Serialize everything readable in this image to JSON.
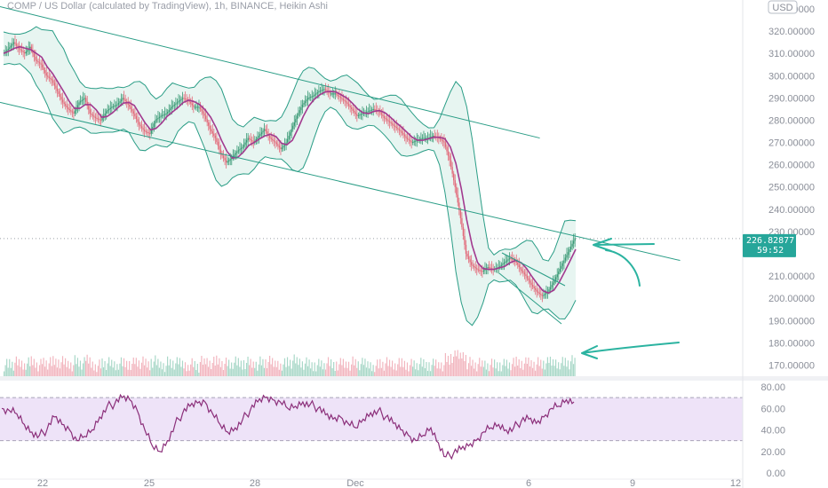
{
  "header": {
    "title": "COMP / US Dollar (calculated by TradingView), 1h, BINANCE, Heikin Ashi",
    "currency": "USD"
  },
  "price_axis": {
    "ticks": [
      "330.00000",
      "320.00000",
      "310.00000",
      "300.00000",
      "290.00000",
      "280.00000",
      "270.00000",
      "260.00000",
      "250.00000",
      "240.00000",
      "230.00000",
      "210.00000",
      "200.00000",
      "190.00000",
      "180.00000",
      "170.00000"
    ],
    "current_price": "226.82877",
    "countdown": "59:52"
  },
  "rsi_axis": {
    "ticks": [
      "80.00",
      "60.00",
      "40.00",
      "20.00",
      "0.00"
    ]
  },
  "time_axis": {
    "ticks": [
      "22",
      "25",
      "28",
      "Dec",
      "6",
      "9",
      "12"
    ]
  },
  "colors": {
    "background": "#ffffff",
    "candle": "#e26a7a",
    "candle_up": "#3a9a76",
    "bollinger": "#2a9d86",
    "bollinger_fill": "#dff2ec",
    "ma": "#a23a8f",
    "rsi_line": "#8b2f7a",
    "rsi_band": "#ece0f7",
    "price_tag": "#26a69a",
    "annotation": "#2bb3a0"
  },
  "chart_data": [
    {
      "type": "line",
      "title": "COMP / US Dollar (calculated by TradingView), 1h, BINANCE, Heikin Ashi",
      "ylim": [
        165,
        334
      ],
      "y_scale": "linear",
      "x_ticks": [
        "22",
        "25",
        "28",
        "Dec",
        "6",
        "9",
        "12"
      ],
      "current_price": 226.82877,
      "series": [
        {
          "values": [
            310,
            312,
            315,
            312,
            310,
            313,
            307,
            305,
            300,
            298,
            293,
            288,
            285,
            283,
            288,
            290,
            283,
            281,
            280,
            284,
            286,
            287,
            290,
            287,
            283,
            278,
            275,
            274,
            280,
            282,
            283,
            286,
            288,
            290,
            289,
            286,
            286,
            282,
            276,
            272,
            265,
            261,
            263,
            266,
            268,
            272,
            270,
            273,
            276,
            272,
            270,
            267,
            270,
            276,
            282,
            287,
            290,
            291,
            293,
            294,
            292,
            292,
            290,
            288,
            285,
            282,
            283,
            284,
            285,
            284,
            281,
            279,
            277,
            275,
            272,
            270,
            271,
            272,
            272,
            273,
            272,
            270,
            262,
            250,
            236,
            220,
            215,
            213,
            212,
            214,
            213,
            214,
            216,
            218,
            217,
            213,
            210,
            206,
            203,
            201,
            203,
            207,
            212,
            217,
            222,
            227
          ]
        }
      ],
      "trend_channel": {
        "upper": [
          [
            0,
            331
          ],
          [
            0.655,
            272
          ]
        ],
        "lower": [
          [
            0,
            288
          ],
          [
            0.82,
            217
          ]
        ]
      }
    },
    {
      "type": "line",
      "title": "",
      "ylim": [
        0,
        80
      ],
      "rsi_band": [
        30,
        70
      ],
      "series": [
        {
          "values": [
            60,
            58,
            55,
            45,
            38,
            35,
            40,
            52,
            45,
            40,
            30,
            34,
            40,
            52,
            62,
            64,
            70,
            68,
            58,
            40,
            25,
            20,
            30,
            45,
            55,
            62,
            65,
            66,
            55,
            45,
            38,
            42,
            50,
            58,
            66,
            70,
            68,
            66,
            60,
            62,
            66,
            64,
            60,
            54,
            50,
            52,
            46,
            42,
            50,
            56,
            58,
            52,
            46,
            40,
            35,
            30,
            35,
            42,
            28,
            15,
            18,
            22,
            25,
            30,
            38,
            42,
            45,
            40,
            42,
            48,
            50,
            46,
            52,
            60,
            62,
            68,
            66
          ]
        }
      ]
    }
  ]
}
